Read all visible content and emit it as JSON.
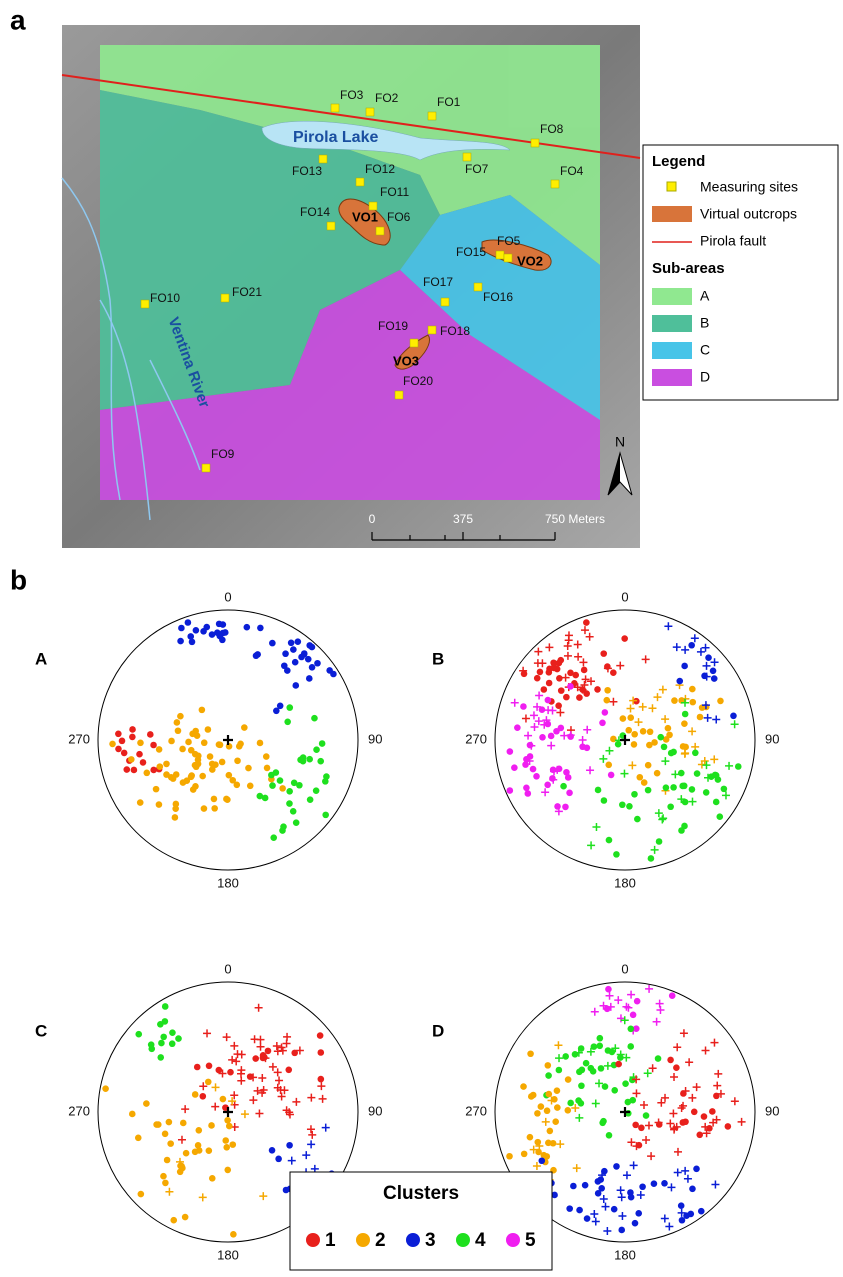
{
  "panel_a": {
    "label": "a",
    "sites": [
      "FO1",
      "FO2",
      "FO3",
      "FO4",
      "FO5",
      "FO6",
      "FO7",
      "FO8",
      "FO9",
      "FO10",
      "FO11",
      "FO12",
      "FO13",
      "FO14",
      "FO15",
      "FO16",
      "FO17",
      "FO18",
      "FO19",
      "FO20",
      "FO21"
    ],
    "outcrops": [
      "VO1",
      "VO2",
      "VO3"
    ],
    "lake": "Pirola Lake",
    "river": "Ventina River",
    "north": "N",
    "scale": [
      "0",
      "375",
      "750 Meters"
    ],
    "legend": {
      "title": "Legend",
      "items": [
        "Measuring sites",
        "Virtual outcrops",
        "Pirola fault"
      ],
      "subareas_title": "Sub-areas",
      "subareas": [
        "A",
        "B",
        "C",
        "D"
      ]
    }
  },
  "panel_b": {
    "label": "b",
    "nets": [
      {
        "title": "A",
        "directions": [
          "0",
          "90",
          "180",
          "270"
        ]
      },
      {
        "title": "B",
        "directions": [
          "0",
          "90",
          "180",
          "270"
        ]
      },
      {
        "title": "C",
        "directions": [
          "0",
          "90",
          "180",
          "270"
        ]
      },
      {
        "title": "D",
        "directions": [
          "0",
          "90",
          "180",
          "270"
        ]
      }
    ],
    "clusters": {
      "title": "Clusters",
      "items": [
        "1",
        "2",
        "3",
        "4",
        "5"
      ]
    }
  }
}
